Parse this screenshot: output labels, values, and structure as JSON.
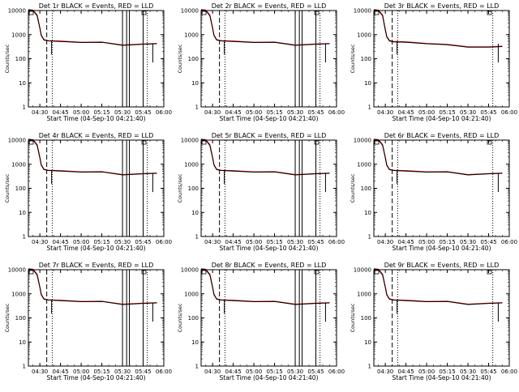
{
  "chart_data": [
    {
      "type": "line",
      "title": "Det 1r BLACK = Events, RED = LLD",
      "xlabel": "Start Time (04-Sep-10 04:21:40)",
      "ylabel": "Counts/sec",
      "yscale": "log",
      "ylim": [
        1,
        10000
      ],
      "xlim": [
        "04:21:40",
        "06:00:00"
      ],
      "yticks": [
        "1",
        "10",
        "100",
        "1000",
        "10000"
      ],
      "xticks": [
        "04:30",
        "04:45",
        "05:00",
        "05:15",
        "05:30",
        "05:45",
        "06:00"
      ],
      "events": {
        "x": [
          "04:21:40",
          "04:25",
          "04:28",
          "04:30",
          "04:31",
          "04:33",
          "04:36",
          "04:45",
          "05:00",
          "05:15",
          "05:30",
          "05:45",
          "05:55"
        ],
        "y": [
          12000,
          10000,
          6000,
          1800,
          900,
          600,
          550,
          520,
          470,
          480,
          360,
          400,
          420
        ]
      },
      "lld": {
        "x": [
          "04:21:40",
          "04:25",
          "04:28",
          "04:30",
          "04:31",
          "04:33",
          "04:36",
          "04:45",
          "05:00",
          "05:15",
          "05:30",
          "05:45",
          "05:55"
        ],
        "y": [
          12500,
          10500,
          6500,
          1900,
          950,
          620,
          560,
          540,
          480,
          490,
          370,
          410,
          430
        ]
      },
      "dashed_line": "04:35",
      "dotted_lines": [
        "04:39",
        "05:48"
      ],
      "solid_lines": [
        "05:30",
        "05:33",
        "05:35",
        "05:45"
      ],
      "drop_at": "05:52"
    },
    {
      "type": "line",
      "title": "Det 2r BLACK = Events, RED = LLD",
      "xlabel": "Start Time (04-Sep-10 04:21:40)",
      "ylabel": "Counts/sec",
      "yscale": "log",
      "ylim": [
        1,
        10000
      ],
      "xlim": [
        "04:21:40",
        "06:00:00"
      ],
      "yticks": [
        "1",
        "10",
        "100",
        "1000",
        "10000"
      ],
      "xticks": [
        "04:30",
        "04:45",
        "05:00",
        "05:15",
        "05:30",
        "05:45",
        "06:00"
      ],
      "events": {
        "x": [
          "04:21:40",
          "04:25",
          "04:28",
          "04:30",
          "04:31",
          "04:33",
          "04:36",
          "04:45",
          "05:00",
          "05:15",
          "05:30",
          "05:45",
          "05:55"
        ],
        "y": [
          12000,
          10000,
          6000,
          1800,
          900,
          600,
          550,
          520,
          470,
          480,
          360,
          400,
          420
        ]
      },
      "lld": {
        "x": [
          "04:21:40",
          "04:25",
          "04:28",
          "04:30",
          "04:31",
          "04:33",
          "04:36",
          "04:45",
          "05:00",
          "05:15",
          "05:30",
          "05:45",
          "05:55"
        ],
        "y": [
          12500,
          10500,
          6500,
          1900,
          950,
          620,
          560,
          540,
          480,
          490,
          370,
          410,
          430
        ]
      },
      "dashed_line": "04:35",
      "dotted_lines": [
        "04:39",
        "05:48"
      ],
      "solid_lines": [
        "05:30",
        "05:33",
        "05:35",
        "05:45"
      ],
      "drop_at": "05:52"
    },
    {
      "type": "line",
      "title": "Det 3r BLACK = Events, RED = LLD",
      "xlabel": "Start Time (04-Sep-10 04:21:40)",
      "ylabel": "Counts/sec",
      "yscale": "log",
      "ylim": [
        1,
        10000
      ],
      "xlim": [
        "04:21:40",
        "06:00:00"
      ],
      "yticks": [
        "1",
        "10",
        "100",
        "1000",
        "10000"
      ],
      "xticks": [
        "04:30",
        "04:45",
        "05:00",
        "05:15",
        "05:30",
        "05:45",
        "06:00"
      ],
      "events": {
        "x": [
          "04:21:40",
          "04:25",
          "04:28",
          "04:30",
          "04:31",
          "04:33",
          "04:36",
          "04:45",
          "05:00",
          "05:15",
          "05:30",
          "05:45",
          "05:55"
        ],
        "y": [
          12000,
          10000,
          6000,
          1500,
          800,
          550,
          500,
          480,
          420,
          380,
          300,
          300,
          320
        ]
      },
      "lld": {
        "x": [
          "04:21:40",
          "04:25",
          "04:28",
          "04:30",
          "04:31",
          "04:33",
          "04:36",
          "04:45",
          "05:00",
          "05:15",
          "05:30",
          "05:45",
          "05:55"
        ],
        "y": [
          12500,
          10500,
          6500,
          1600,
          850,
          570,
          520,
          500,
          430,
          390,
          310,
          310,
          330
        ]
      },
      "dashed_line": "04:35",
      "dotted_lines": [
        "04:39",
        "05:48"
      ],
      "solid_lines": [],
      "drop_at": "05:52"
    },
    {
      "type": "line",
      "title": "Det 4r BLACK = Events, RED = LLD",
      "xlabel": "Start Time (04-Sep-10 04:21:40)",
      "ylabel": "Counts/sec",
      "yscale": "log",
      "ylim": [
        1,
        10000
      ],
      "xlim": [
        "04:21:40",
        "06:00:00"
      ],
      "yticks": [
        "1",
        "10",
        "100",
        "1000",
        "10000"
      ],
      "xticks": [
        "04:30",
        "04:45",
        "05:00",
        "05:15",
        "05:30",
        "05:45",
        "06:00"
      ],
      "events": {
        "x": [
          "04:21:40",
          "04:25",
          "04:28",
          "04:30",
          "04:31",
          "04:33",
          "04:36",
          "04:45",
          "05:00",
          "05:15",
          "05:30",
          "05:45",
          "05:55"
        ],
        "y": [
          12000,
          10000,
          6000,
          1800,
          900,
          600,
          550,
          520,
          470,
          480,
          360,
          400,
          420
        ]
      },
      "lld": {
        "x": [
          "04:21:40",
          "04:25",
          "04:28",
          "04:30",
          "04:31",
          "04:33",
          "04:36",
          "04:45",
          "05:00",
          "05:15",
          "05:30",
          "05:45",
          "05:55"
        ],
        "y": [
          12500,
          10500,
          6500,
          1900,
          950,
          620,
          560,
          540,
          480,
          490,
          370,
          410,
          430
        ]
      },
      "dashed_line": "04:35",
      "dotted_lines": [
        "04:39",
        "05:48"
      ],
      "solid_lines": [
        "05:30",
        "05:33",
        "05:35",
        "05:45"
      ],
      "drop_at": "05:52"
    },
    {
      "type": "line",
      "title": "Det 5r BLACK = Events, RED = LLD",
      "xlabel": "Start Time (04-Sep-10 04:21:40)",
      "ylabel": "Counts/sec",
      "yscale": "log",
      "ylim": [
        1,
        10000
      ],
      "xlim": [
        "04:21:40",
        "06:00:00"
      ],
      "yticks": [
        "1",
        "10",
        "100",
        "1000",
        "10000"
      ],
      "xticks": [
        "04:30",
        "04:45",
        "05:00",
        "05:15",
        "05:30",
        "05:45",
        "06:00"
      ],
      "events": {
        "x": [
          "04:21:40",
          "04:25",
          "04:28",
          "04:30",
          "04:31",
          "04:33",
          "04:36",
          "04:45",
          "05:00",
          "05:15",
          "05:30",
          "05:45",
          "05:55"
        ],
        "y": [
          12000,
          10000,
          6000,
          1800,
          900,
          600,
          550,
          520,
          470,
          480,
          360,
          400,
          420
        ]
      },
      "lld": {
        "x": [
          "04:21:40",
          "04:25",
          "04:28",
          "04:30",
          "04:31",
          "04:33",
          "04:36",
          "04:45",
          "05:00",
          "05:15",
          "05:30",
          "05:45",
          "05:55"
        ],
        "y": [
          12500,
          10500,
          6500,
          1900,
          950,
          620,
          560,
          540,
          480,
          490,
          370,
          410,
          430
        ]
      },
      "dashed_line": "04:35",
      "dotted_lines": [
        "04:39",
        "05:48"
      ],
      "solid_lines": [
        "05:30",
        "05:33",
        "05:35",
        "05:45"
      ],
      "drop_at": "05:52"
    },
    {
      "type": "line",
      "title": "Det 6r BLACK = Events, RED = LLD",
      "xlabel": "Start Time (04-Sep-10 04:21:40)",
      "ylabel": "Counts/sec",
      "yscale": "log",
      "ylim": [
        1,
        10000
      ],
      "xlim": [
        "04:21:40",
        "06:00:00"
      ],
      "yticks": [
        "1",
        "10",
        "100",
        "1000",
        "10000"
      ],
      "xticks": [
        "04:30",
        "04:45",
        "05:00",
        "05:15",
        "05:30",
        "05:45",
        "06:00"
      ],
      "events": {
        "x": [
          "04:21:40",
          "04:25",
          "04:28",
          "04:30",
          "04:31",
          "04:33",
          "04:36",
          "04:45",
          "05:00",
          "05:15",
          "05:30",
          "05:45",
          "05:55"
        ],
        "y": [
          12000,
          10000,
          6000,
          1800,
          900,
          600,
          550,
          520,
          470,
          480,
          360,
          400,
          420
        ]
      },
      "lld": {
        "x": [
          "04:21:40",
          "04:25",
          "04:28",
          "04:30",
          "04:31",
          "04:33",
          "04:36",
          "04:45",
          "05:00",
          "05:15",
          "05:30",
          "05:45",
          "05:55"
        ],
        "y": [
          12500,
          10500,
          6500,
          1900,
          950,
          620,
          560,
          540,
          480,
          490,
          370,
          410,
          430
        ]
      },
      "dashed_line": "04:35",
      "dotted_lines": [
        "04:39",
        "05:48"
      ],
      "solid_lines": [],
      "drop_at": "05:52"
    },
    {
      "type": "line",
      "title": "Det 7r BLACK = Events, RED = LLD",
      "xlabel": "Start Time (04-Sep-10 04:21:40)",
      "ylabel": "Counts/sec",
      "yscale": "log",
      "ylim": [
        1,
        10000
      ],
      "xlim": [
        "04:21:40",
        "06:00:00"
      ],
      "yticks": [
        "1",
        "10",
        "100",
        "1000",
        "10000"
      ],
      "xticks": [
        "04:30",
        "04:45",
        "05:00",
        "05:15",
        "05:30",
        "05:45",
        "06:00"
      ],
      "events": {
        "x": [
          "04:21:40",
          "04:25",
          "04:28",
          "04:30",
          "04:31",
          "04:33",
          "04:36",
          "04:45",
          "05:00",
          "05:15",
          "05:30",
          "05:45",
          "05:55"
        ],
        "y": [
          12000,
          10000,
          6000,
          1800,
          900,
          600,
          550,
          520,
          470,
          480,
          360,
          400,
          420
        ]
      },
      "lld": {
        "x": [
          "04:21:40",
          "04:25",
          "04:28",
          "04:30",
          "04:31",
          "04:33",
          "04:36",
          "04:45",
          "05:00",
          "05:15",
          "05:30",
          "05:45",
          "05:55"
        ],
        "y": [
          12500,
          10500,
          6500,
          1900,
          950,
          620,
          560,
          540,
          480,
          490,
          370,
          410,
          430
        ]
      },
      "dashed_line": "04:35",
      "dotted_lines": [
        "04:39",
        "05:48"
      ],
      "solid_lines": [
        "05:30",
        "05:33",
        "05:35",
        "05:45"
      ],
      "drop_at": "05:52"
    },
    {
      "type": "line",
      "title": "Det 8r BLACK = Events, RED = LLD",
      "xlabel": "Start Time (04-Sep-10 04:21:40)",
      "ylabel": "Counts/sec",
      "yscale": "log",
      "ylim": [
        1,
        10000
      ],
      "xlim": [
        "04:21:40",
        "06:00:00"
      ],
      "yticks": [
        "1",
        "10",
        "100",
        "1000",
        "10000"
      ],
      "xticks": [
        "04:30",
        "04:45",
        "05:00",
        "05:15",
        "05:30",
        "05:45",
        "06:00"
      ],
      "events": {
        "x": [
          "04:21:40",
          "04:25",
          "04:28",
          "04:30",
          "04:31",
          "04:33",
          "04:36",
          "04:45",
          "05:00",
          "05:15",
          "05:30",
          "05:45",
          "05:55"
        ],
        "y": [
          12000,
          10000,
          6000,
          1800,
          900,
          600,
          550,
          520,
          470,
          480,
          360,
          400,
          420
        ]
      },
      "lld": {
        "x": [
          "04:21:40",
          "04:25",
          "04:28",
          "04:30",
          "04:31",
          "04:33",
          "04:36",
          "04:45",
          "05:00",
          "05:15",
          "05:30",
          "05:45",
          "05:55"
        ],
        "y": [
          12500,
          10500,
          6500,
          1900,
          950,
          620,
          560,
          540,
          480,
          490,
          370,
          410,
          430
        ]
      },
      "dashed_line": "04:35",
      "dotted_lines": [
        "04:39",
        "05:48"
      ],
      "solid_lines": [
        "05:30",
        "05:33",
        "05:35",
        "05:45"
      ],
      "drop_at": "05:52"
    },
    {
      "type": "line",
      "title": "Det 9r BLACK = Events, RED = LLD",
      "xlabel": "Start Time (04-Sep-10 04:21:40)",
      "ylabel": "Counts/sec",
      "yscale": "log",
      "ylim": [
        1,
        10000
      ],
      "xlim": [
        "04:21:40",
        "06:00:00"
      ],
      "yticks": [
        "1",
        "10",
        "100",
        "1000",
        "10000"
      ],
      "xticks": [
        "04:30",
        "04:45",
        "05:00",
        "05:15",
        "05:30",
        "05:45",
        "06:00"
      ],
      "events": {
        "x": [
          "04:21:40",
          "04:25",
          "04:28",
          "04:30",
          "04:31",
          "04:33",
          "04:36",
          "04:45",
          "05:00",
          "05:15",
          "05:30",
          "05:45",
          "05:55"
        ],
        "y": [
          12000,
          10000,
          6000,
          1800,
          900,
          600,
          550,
          520,
          470,
          480,
          360,
          400,
          420
        ]
      },
      "lld": {
        "x": [
          "04:21:40",
          "04:25",
          "04:28",
          "04:30",
          "04:31",
          "04:33",
          "04:36",
          "04:45",
          "05:00",
          "05:15",
          "05:30",
          "05:45",
          "05:55"
        ],
        "y": [
          12500,
          10500,
          6500,
          1900,
          950,
          620,
          560,
          540,
          480,
          490,
          370,
          410,
          430
        ]
      },
      "dashed_line": "04:35",
      "dotted_lines": [
        "04:39",
        "05:48"
      ],
      "solid_lines": [],
      "drop_at": "05:52"
    }
  ],
  "colors": {
    "events": "#000000",
    "lld": "#e00000",
    "axes": "#000000",
    "background": "#ffffff"
  }
}
